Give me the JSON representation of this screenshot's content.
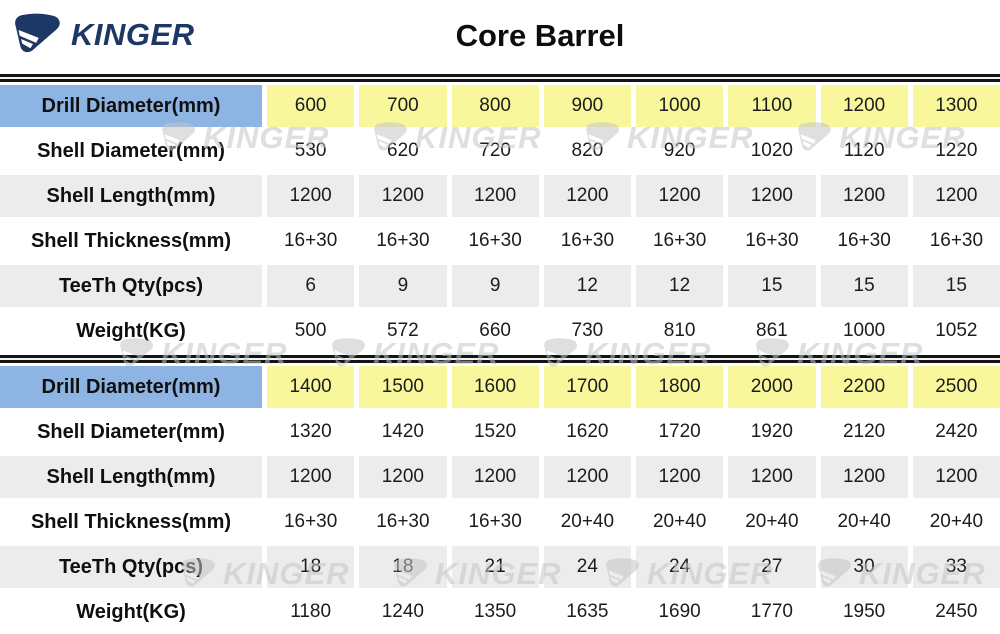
{
  "logo": {
    "text": "KINGER",
    "color": "#1d3864"
  },
  "title": "Core Barrel",
  "watermark": {
    "text": "KINGER"
  },
  "colors": {
    "header_label_bg": "#8db4e2",
    "header_value_bg": "#f8f79c",
    "alt_row_bg": "#ececec",
    "row_bg": "#ffffff",
    "divider": "#141414",
    "logo_navy": "#1d3864"
  },
  "table": {
    "sections": [
      {
        "rows": [
          {
            "label": "Drill Diameter(mm)",
            "values": [
              "600",
              "700",
              "800",
              "900",
              "1000",
              "1100",
              "1200",
              "1300"
            ]
          },
          {
            "label": "Shell Diameter(mm)",
            "values": [
              "530",
              "620",
              "720",
              "820",
              "920",
              "1020",
              "1120",
              "1220"
            ]
          },
          {
            "label": "Shell Length(mm)",
            "values": [
              "1200",
              "1200",
              "1200",
              "1200",
              "1200",
              "1200",
              "1200",
              "1200"
            ]
          },
          {
            "label": "Shell Thickness(mm)",
            "values": [
              "16+30",
              "16+30",
              "16+30",
              "16+30",
              "16+30",
              "16+30",
              "16+30",
              "16+30"
            ]
          },
          {
            "label": "TeeTh Qty(pcs)",
            "values": [
              "6",
              "9",
              "9",
              "12",
              "12",
              "15",
              "15",
              "15"
            ]
          },
          {
            "label": "Weight(KG)",
            "values": [
              "500",
              "572",
              "660",
              "730",
              "810",
              "861",
              "1000",
              "1052"
            ]
          }
        ]
      },
      {
        "rows": [
          {
            "label": "Drill Diameter(mm)",
            "values": [
              "1400",
              "1500",
              "1600",
              "1700",
              "1800",
              "2000",
              "2200",
              "2500"
            ]
          },
          {
            "label": "Shell Diameter(mm)",
            "values": [
              "1320",
              "1420",
              "1520",
              "1620",
              "1720",
              "1920",
              "2120",
              "2420"
            ]
          },
          {
            "label": "Shell Length(mm)",
            "values": [
              "1200",
              "1200",
              "1200",
              "1200",
              "1200",
              "1200",
              "1200",
              "1200"
            ]
          },
          {
            "label": "Shell Thickness(mm)",
            "values": [
              "16+30",
              "16+30",
              "16+30",
              "20+40",
              "20+40",
              "20+40",
              "20+40",
              "20+40"
            ]
          },
          {
            "label": "TeeTh Qty(pcs)",
            "values": [
              "18",
              "18",
              "21",
              "24",
              "24",
              "27",
              "30",
              "33"
            ]
          },
          {
            "label": "Weight(KG)",
            "values": [
              "1180",
              "1240",
              "1350",
              "1635",
              "1690",
              "1770",
              "1950",
              "2450"
            ]
          }
        ]
      }
    ]
  }
}
